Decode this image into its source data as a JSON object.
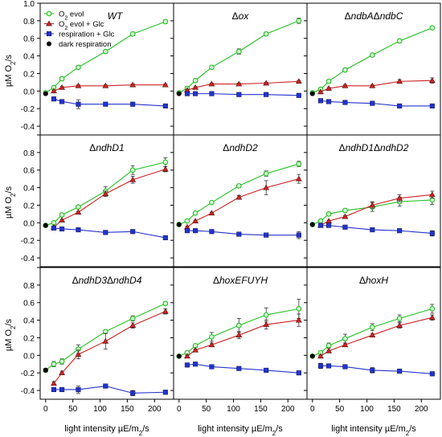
{
  "chart_data": [
    {
      "type": "scatter",
      "title": "WT",
      "title_parts": [
        "WT"
      ],
      "series": [
        {
          "name": "O2 evol",
          "color": "#22c022",
          "marker": "circle",
          "x": [
            0,
            15,
            30,
            60,
            110,
            160,
            220
          ],
          "y": [
            -0.02,
            0.04,
            0.14,
            0.27,
            0.45,
            0.65,
            0.79
          ],
          "err": [
            0,
            0.02,
            0.02,
            0.02,
            0.02,
            0.02,
            0.02
          ]
        },
        {
          "name": "O2 evol + Glc",
          "color": "#cc2222",
          "marker": "triangle",
          "x": [
            15,
            30,
            60,
            110,
            160,
            220
          ],
          "y": [
            0.0,
            0.04,
            0.06,
            0.06,
            0.07,
            0.07
          ],
          "err": [
            0.01,
            0.01,
            0.01,
            0.01,
            0.01,
            0.01
          ]
        },
        {
          "name": "respiration + Glc",
          "color": "#2233cc",
          "marker": "square",
          "x": [
            15,
            30,
            60,
            110,
            160,
            220
          ],
          "y": [
            -0.09,
            -0.12,
            -0.15,
            -0.15,
            -0.15,
            -0.17
          ],
          "err": [
            0.01,
            0.01,
            0.05,
            0.01,
            0.01,
            0.02
          ]
        },
        {
          "name": "dark respiration",
          "color": "#000000",
          "marker": "dot",
          "x": [
            0
          ],
          "y": [
            -0.03
          ],
          "err": [
            0
          ]
        }
      ]
    },
    {
      "type": "scatter",
      "title": "Δox",
      "title_parts": [
        "Δ",
        "ox"
      ],
      "series": [
        {
          "name": "O2 evol",
          "color": "#22c022",
          "marker": "circle",
          "x": [
            0,
            15,
            30,
            60,
            110,
            160,
            220
          ],
          "y": [
            -0.02,
            0.03,
            0.12,
            0.27,
            0.45,
            0.65,
            0.8
          ],
          "err": [
            0,
            0.02,
            0.02,
            0.02,
            0.03,
            0.02,
            0.03
          ]
        },
        {
          "name": "O2 evol + Glc",
          "color": "#cc2222",
          "marker": "triangle",
          "x": [
            15,
            30,
            60,
            110,
            160,
            220
          ],
          "y": [
            0.01,
            0.04,
            0.08,
            0.08,
            0.09,
            0.11
          ],
          "err": [
            0.01,
            0.01,
            0.01,
            0.01,
            0.01,
            0.01
          ]
        },
        {
          "name": "respiration + Glc",
          "color": "#2233cc",
          "marker": "square",
          "x": [
            15,
            30,
            60,
            110,
            160,
            220
          ],
          "y": [
            -0.03,
            -0.03,
            -0.03,
            -0.04,
            -0.04,
            -0.05
          ],
          "err": [
            0.01,
            0.01,
            0.01,
            0.01,
            0.01,
            0.01
          ]
        },
        {
          "name": "dark respiration",
          "color": "#000000",
          "marker": "dot",
          "x": [
            0
          ],
          "y": [
            -0.03
          ],
          "err": [
            0
          ]
        }
      ]
    },
    {
      "type": "scatter",
      "title": "ΔndbAΔndbC",
      "title_parts": [
        "Δ",
        "ndbA",
        "Δ",
        "ndbC"
      ],
      "series": [
        {
          "name": "O2 evol",
          "color": "#22c022",
          "marker": "circle",
          "x": [
            0,
            15,
            30,
            60,
            110,
            160,
            220
          ],
          "y": [
            -0.02,
            0.02,
            0.11,
            0.24,
            0.41,
            0.57,
            0.72
          ],
          "err": [
            0,
            0.02,
            0.02,
            0.02,
            0.02,
            0.02,
            0.01
          ]
        },
        {
          "name": "O2 evol + Glc",
          "color": "#cc2222",
          "marker": "triangle",
          "x": [
            15,
            30,
            60,
            110,
            160,
            220
          ],
          "y": [
            -0.01,
            0.03,
            0.06,
            0.06,
            0.11,
            0.12
          ],
          "err": [
            0.01,
            0.01,
            0.01,
            0.01,
            0.02,
            0.03
          ]
        },
        {
          "name": "respiration + Glc",
          "color": "#2233cc",
          "marker": "square",
          "x": [
            15,
            30,
            60,
            110,
            160,
            220
          ],
          "y": [
            -0.11,
            -0.12,
            -0.13,
            -0.14,
            -0.17,
            -0.17
          ],
          "err": [
            0.01,
            0.01,
            0.01,
            0.01,
            0.01,
            0.01
          ]
        },
        {
          "name": "dark respiration",
          "color": "#000000",
          "marker": "dot",
          "x": [
            0
          ],
          "y": [
            -0.03
          ],
          "err": [
            0
          ]
        }
      ]
    },
    {
      "type": "scatter",
      "title": "ΔndhD1",
      "title_parts": [
        "Δ",
        "ndhD1"
      ],
      "series": [
        {
          "name": "O2 evol",
          "color": "#22c022",
          "marker": "circle",
          "x": [
            0,
            15,
            30,
            60,
            110,
            160,
            220
          ],
          "y": [
            -0.03,
            0.0,
            0.09,
            0.18,
            0.36,
            0.6,
            0.69
          ],
          "err": [
            0,
            0.01,
            0.01,
            0.01,
            0.05,
            0.05,
            0.05
          ]
        },
        {
          "name": "O2 evol + Glc",
          "color": "#cc2222",
          "marker": "triangle",
          "x": [
            15,
            30,
            60,
            110,
            160,
            220
          ],
          "y": [
            -0.05,
            0.03,
            0.12,
            0.33,
            0.49,
            0.61
          ],
          "err": [
            0.01,
            0.01,
            0.01,
            0.03,
            0.04,
            0.03
          ]
        },
        {
          "name": "respiration + Glc",
          "color": "#2233cc",
          "marker": "square",
          "x": [
            15,
            30,
            60,
            110,
            160,
            220
          ],
          "y": [
            -0.06,
            -0.07,
            -0.08,
            -0.11,
            -0.1,
            -0.17
          ],
          "err": [
            0.01,
            0.01,
            0.01,
            0.01,
            0.01,
            0.01
          ]
        },
        {
          "name": "dark respiration",
          "color": "#000000",
          "marker": "dot",
          "x": [
            0
          ],
          "y": [
            -0.03
          ],
          "err": [
            0
          ]
        }
      ]
    },
    {
      "type": "scatter",
      "title": "ΔndhD2",
      "title_parts": [
        "Δ",
        "ndhD2"
      ],
      "series": [
        {
          "name": "O2 evol",
          "color": "#22c022",
          "marker": "circle",
          "x": [
            0,
            15,
            30,
            60,
            110,
            160,
            220
          ],
          "y": [
            -0.02,
            0.02,
            0.11,
            0.23,
            0.42,
            0.56,
            0.67
          ],
          "err": [
            0,
            0.01,
            0.01,
            0.01,
            0.02,
            0.03,
            0.03
          ]
        },
        {
          "name": "O2 evol + Glc",
          "color": "#cc2222",
          "marker": "triangle",
          "x": [
            15,
            30,
            60,
            110,
            160,
            220
          ],
          "y": [
            -0.05,
            0.02,
            0.11,
            0.29,
            0.4,
            0.5
          ],
          "err": [
            0.01,
            0.01,
            0.01,
            0.02,
            0.08,
            0.05
          ]
        },
        {
          "name": "respiration + Glc",
          "color": "#2233cc",
          "marker": "square",
          "x": [
            15,
            30,
            60,
            110,
            160,
            220
          ],
          "y": [
            -0.09,
            -0.09,
            -0.1,
            -0.13,
            -0.14,
            -0.14
          ],
          "err": [
            0.01,
            0.01,
            0.01,
            0.01,
            0.01,
            0.04
          ]
        },
        {
          "name": "dark respiration",
          "color": "#000000",
          "marker": "dot",
          "x": [
            0
          ],
          "y": [
            -0.02
          ],
          "err": [
            0
          ]
        }
      ]
    },
    {
      "type": "scatter",
      "title": "ΔndhD1ΔndhD2",
      "title_parts": [
        "Δ",
        "ndhD1",
        "Δ",
        "ndhD2"
      ],
      "series": [
        {
          "name": "O2 evol",
          "color": "#22c022",
          "marker": "circle",
          "x": [
            0,
            15,
            30,
            60,
            110,
            160,
            220
          ],
          "y": [
            -0.02,
            0.02,
            0.1,
            0.14,
            0.18,
            0.24,
            0.26
          ],
          "err": [
            0,
            0.01,
            0.02,
            0.02,
            0.05,
            0.05,
            0.05
          ]
        },
        {
          "name": "O2 evol + Glc",
          "color": "#cc2222",
          "marker": "triangle",
          "x": [
            15,
            30,
            60,
            110,
            160,
            220
          ],
          "y": [
            -0.03,
            0.02,
            0.07,
            0.2,
            0.28,
            0.32
          ],
          "err": [
            0.01,
            0.01,
            0.01,
            0.04,
            0.04,
            0.04
          ]
        },
        {
          "name": "respiration + Glc",
          "color": "#2233cc",
          "marker": "square",
          "x": [
            15,
            30,
            60,
            110,
            160,
            220
          ],
          "y": [
            -0.03,
            -0.03,
            -0.05,
            -0.08,
            -0.09,
            -0.12
          ],
          "err": [
            0.01,
            0.01,
            0.01,
            0.01,
            0.02,
            0.03
          ]
        },
        {
          "name": "dark respiration",
          "color": "#000000",
          "marker": "dot",
          "x": [
            0
          ],
          "y": [
            -0.02
          ],
          "err": [
            0
          ]
        }
      ]
    },
    {
      "type": "scatter",
      "title": "ΔndhD3ΔndhD4",
      "title_parts": [
        "Δ",
        "ndhD3",
        "Δ",
        "ndhD4"
      ],
      "series": [
        {
          "name": "O2 evol",
          "color": "#22c022",
          "marker": "circle",
          "x": [
            0,
            15,
            30,
            60,
            110,
            160,
            220
          ],
          "y": [
            -0.17,
            -0.1,
            -0.07,
            0.07,
            0.27,
            0.42,
            0.59
          ],
          "err": [
            0.02,
            0.03,
            0.03,
            0.05,
            0.02,
            0.03,
            0.02
          ]
        },
        {
          "name": "O2 evol + Glc",
          "color": "#cc2222",
          "marker": "triangle",
          "x": [
            15,
            30,
            60,
            110,
            160,
            220
          ],
          "y": [
            -0.32,
            -0.2,
            0.01,
            0.16,
            0.34,
            0.5
          ],
          "err": [
            0.02,
            0.02,
            0.05,
            0.09,
            0.03,
            0.03
          ]
        },
        {
          "name": "respiration + Glc",
          "color": "#2233cc",
          "marker": "square",
          "x": [
            15,
            30,
            60,
            110,
            160,
            220
          ],
          "y": [
            -0.39,
            -0.39,
            -0.39,
            -0.35,
            -0.43,
            -0.42
          ],
          "err": [
            0.02,
            0.02,
            0.04,
            0.02,
            0.03,
            0.01
          ]
        },
        {
          "name": "dark respiration",
          "color": "#000000",
          "marker": "dot",
          "x": [
            0
          ],
          "y": [
            -0.17
          ],
          "err": [
            0.02
          ]
        }
      ]
    },
    {
      "type": "scatter",
      "title": "ΔhoxEFUYH",
      "title_parts": [
        "Δ",
        "hoxEFUYH"
      ],
      "series": [
        {
          "name": "O2 evol",
          "color": "#22c022",
          "marker": "circle",
          "x": [
            0,
            15,
            30,
            60,
            110,
            160,
            220
          ],
          "y": [
            -0.01,
            0.03,
            0.11,
            0.21,
            0.34,
            0.46,
            0.53
          ],
          "err": [
            0,
            0.02,
            0.02,
            0.05,
            0.08,
            0.08,
            0.11
          ]
        },
        {
          "name": "O2 evol + Glc",
          "color": "#cc2222",
          "marker": "triangle",
          "x": [
            15,
            30,
            60,
            110,
            160,
            220
          ],
          "y": [
            -0.01,
            0.06,
            0.12,
            0.23,
            0.35,
            0.4
          ],
          "err": [
            0.01,
            0.01,
            0.02,
            0.04,
            0.05,
            0.07
          ]
        },
        {
          "name": "respiration + Glc",
          "color": "#2233cc",
          "marker": "square",
          "x": [
            15,
            30,
            60,
            110,
            160,
            220
          ],
          "y": [
            -0.11,
            -0.1,
            -0.13,
            -0.15,
            -0.17,
            -0.2
          ],
          "err": [
            0.01,
            0.01,
            0.01,
            0.01,
            0.01,
            0.01
          ]
        },
        {
          "name": "dark respiration",
          "color": "#000000",
          "marker": "dot",
          "x": [
            0
          ],
          "y": [
            -0.01
          ],
          "err": [
            0
          ]
        }
      ]
    },
    {
      "type": "scatter",
      "title": "ΔhoxH",
      "title_parts": [
        "Δ",
        "hoxH"
      ],
      "series": [
        {
          "name": "O2 evol",
          "color": "#22c022",
          "marker": "circle",
          "x": [
            0,
            15,
            30,
            60,
            110,
            160,
            220
          ],
          "y": [
            -0.01,
            0.03,
            0.11,
            0.19,
            0.32,
            0.42,
            0.53
          ],
          "err": [
            0,
            0.02,
            0.03,
            0.05,
            0.04,
            0.04,
            0.05
          ]
        },
        {
          "name": "O2 evol + Glc",
          "color": "#cc2222",
          "marker": "triangle",
          "x": [
            15,
            30,
            60,
            110,
            160,
            220
          ],
          "y": [
            -0.01,
            0.05,
            0.12,
            0.23,
            0.34,
            0.43
          ],
          "err": [
            0.01,
            0.01,
            0.02,
            0.02,
            0.03,
            0.03
          ]
        },
        {
          "name": "respiration + Glc",
          "color": "#2233cc",
          "marker": "square",
          "x": [
            15,
            30,
            60,
            110,
            160,
            220
          ],
          "y": [
            -0.12,
            -0.12,
            -0.13,
            -0.17,
            -0.18,
            -0.21
          ],
          "err": [
            0.03,
            0.01,
            0.01,
            0.03,
            0.01,
            0.01
          ]
        },
        {
          "name": "dark respiration",
          "color": "#000000",
          "marker": "dot",
          "x": [
            0
          ],
          "y": [
            -0.01
          ],
          "err": [
            0
          ]
        }
      ]
    }
  ],
  "axes": {
    "xlim": [
      -10,
      235
    ],
    "ylim": [
      -0.5,
      1.0
    ],
    "x_ticks": [
      0,
      50,
      100,
      150,
      200
    ],
    "x_tick_labels": [
      "0",
      "50",
      "100",
      "150",
      "200"
    ],
    "y_ticks": [
      -0.4,
      -0.2,
      0.0,
      0.2,
      0.4,
      0.6,
      0.8,
      1.0
    ],
    "y_tick_labels": [
      "-0.4",
      "-0.2",
      "0.0",
      "0.2",
      "0.4",
      "0.6",
      "0.8",
      "1.0"
    ],
    "ylabel_parts": [
      "µM O",
      "2",
      "/s"
    ],
    "xlabel_parts": [
      "light intensity µE/m",
      "2",
      "/s"
    ]
  },
  "legend": {
    "placement": "top-left of first panel",
    "entries": [
      {
        "parts": [
          "O",
          "2",
          " evol"
        ],
        "color": "#22c022",
        "marker": "circle"
      },
      {
        "parts": [
          "O",
          "2",
          " evol + Glc"
        ],
        "color": "#cc2222",
        "marker": "triangle"
      },
      {
        "parts": [
          "respiration + Glc"
        ],
        "color": "#2233cc",
        "marker": "square"
      },
      {
        "parts": [
          "dark respiration"
        ],
        "color": "#000000",
        "marker": "dot"
      }
    ]
  }
}
